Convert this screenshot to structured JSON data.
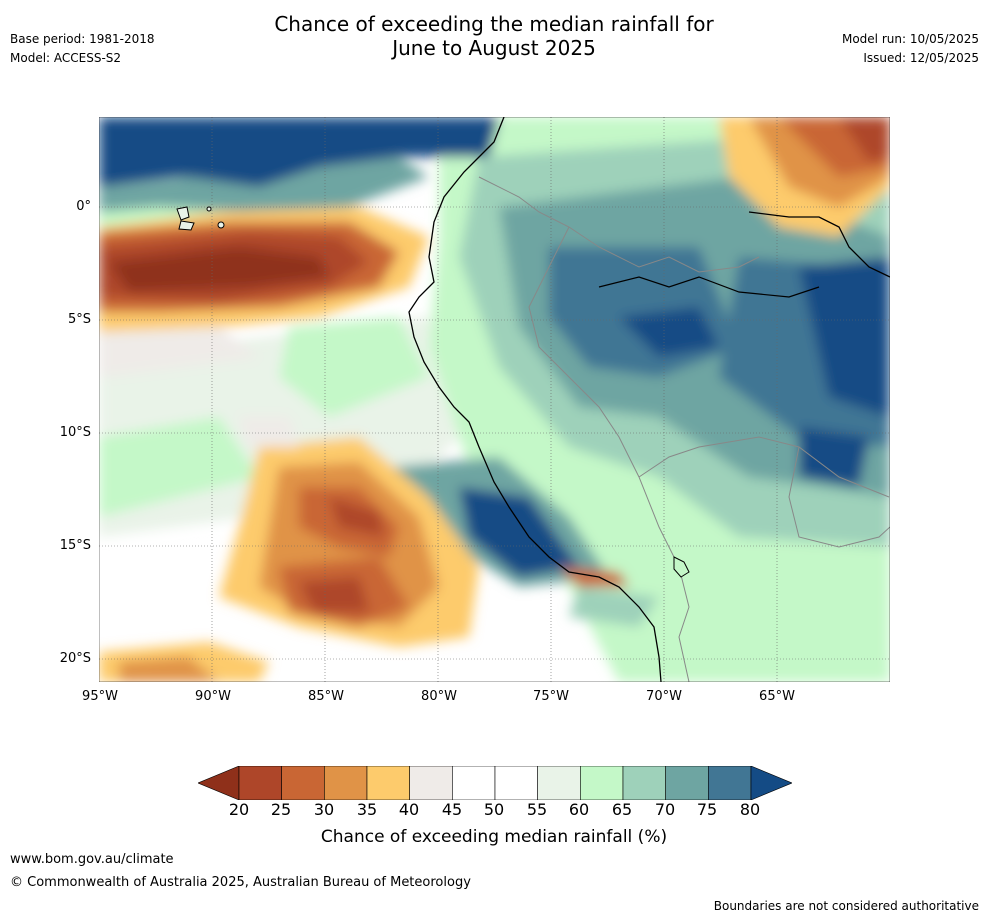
{
  "header": {
    "title_line1": "Chance of exceeding the median rainfall for",
    "title_line2": "June to August 2025",
    "base_period": "Base period: 1981-2018",
    "model": "Model: ACCESS-S2",
    "model_run": "Model run: 10/05/2025",
    "issued": "Issued: 12/05/2025"
  },
  "map": {
    "lat_ticks": [
      "0°",
      "5°S",
      "10°S",
      "15°S",
      "20°S"
    ],
    "lon_ticks": [
      "95°W",
      "90°W",
      "85°W",
      "80°W",
      "75°W",
      "70°W",
      "65°W"
    ],
    "lat_range": [
      -21.2,
      4.0
    ],
    "lon_range": [
      -95.0,
      -59.9
    ]
  },
  "legend": {
    "title": "Chance of exceeding median rainfall (%)",
    "labels": [
      "20",
      "25",
      "30",
      "35",
      "40",
      "45",
      "50",
      "55",
      "60",
      "65",
      "70",
      "75",
      "80"
    ],
    "colors": [
      "#8f301a",
      "#ae4629",
      "#c96634",
      "#e09347",
      "#fdcb6c",
      "#efebe8",
      "#ffffff",
      "#ffffff",
      "#e9f3e8",
      "#c4f8c8",
      "#9ed1ba",
      "#6ea5a2",
      "#417694",
      "#144b85"
    ]
  },
  "footer": {
    "url": "www.bom.gov.au/climate",
    "copyright": "© Commonwealth of Australia 2025, Australian Bureau of Meteorology",
    "disclaimer": "Boundaries are not considered authoritative"
  }
}
